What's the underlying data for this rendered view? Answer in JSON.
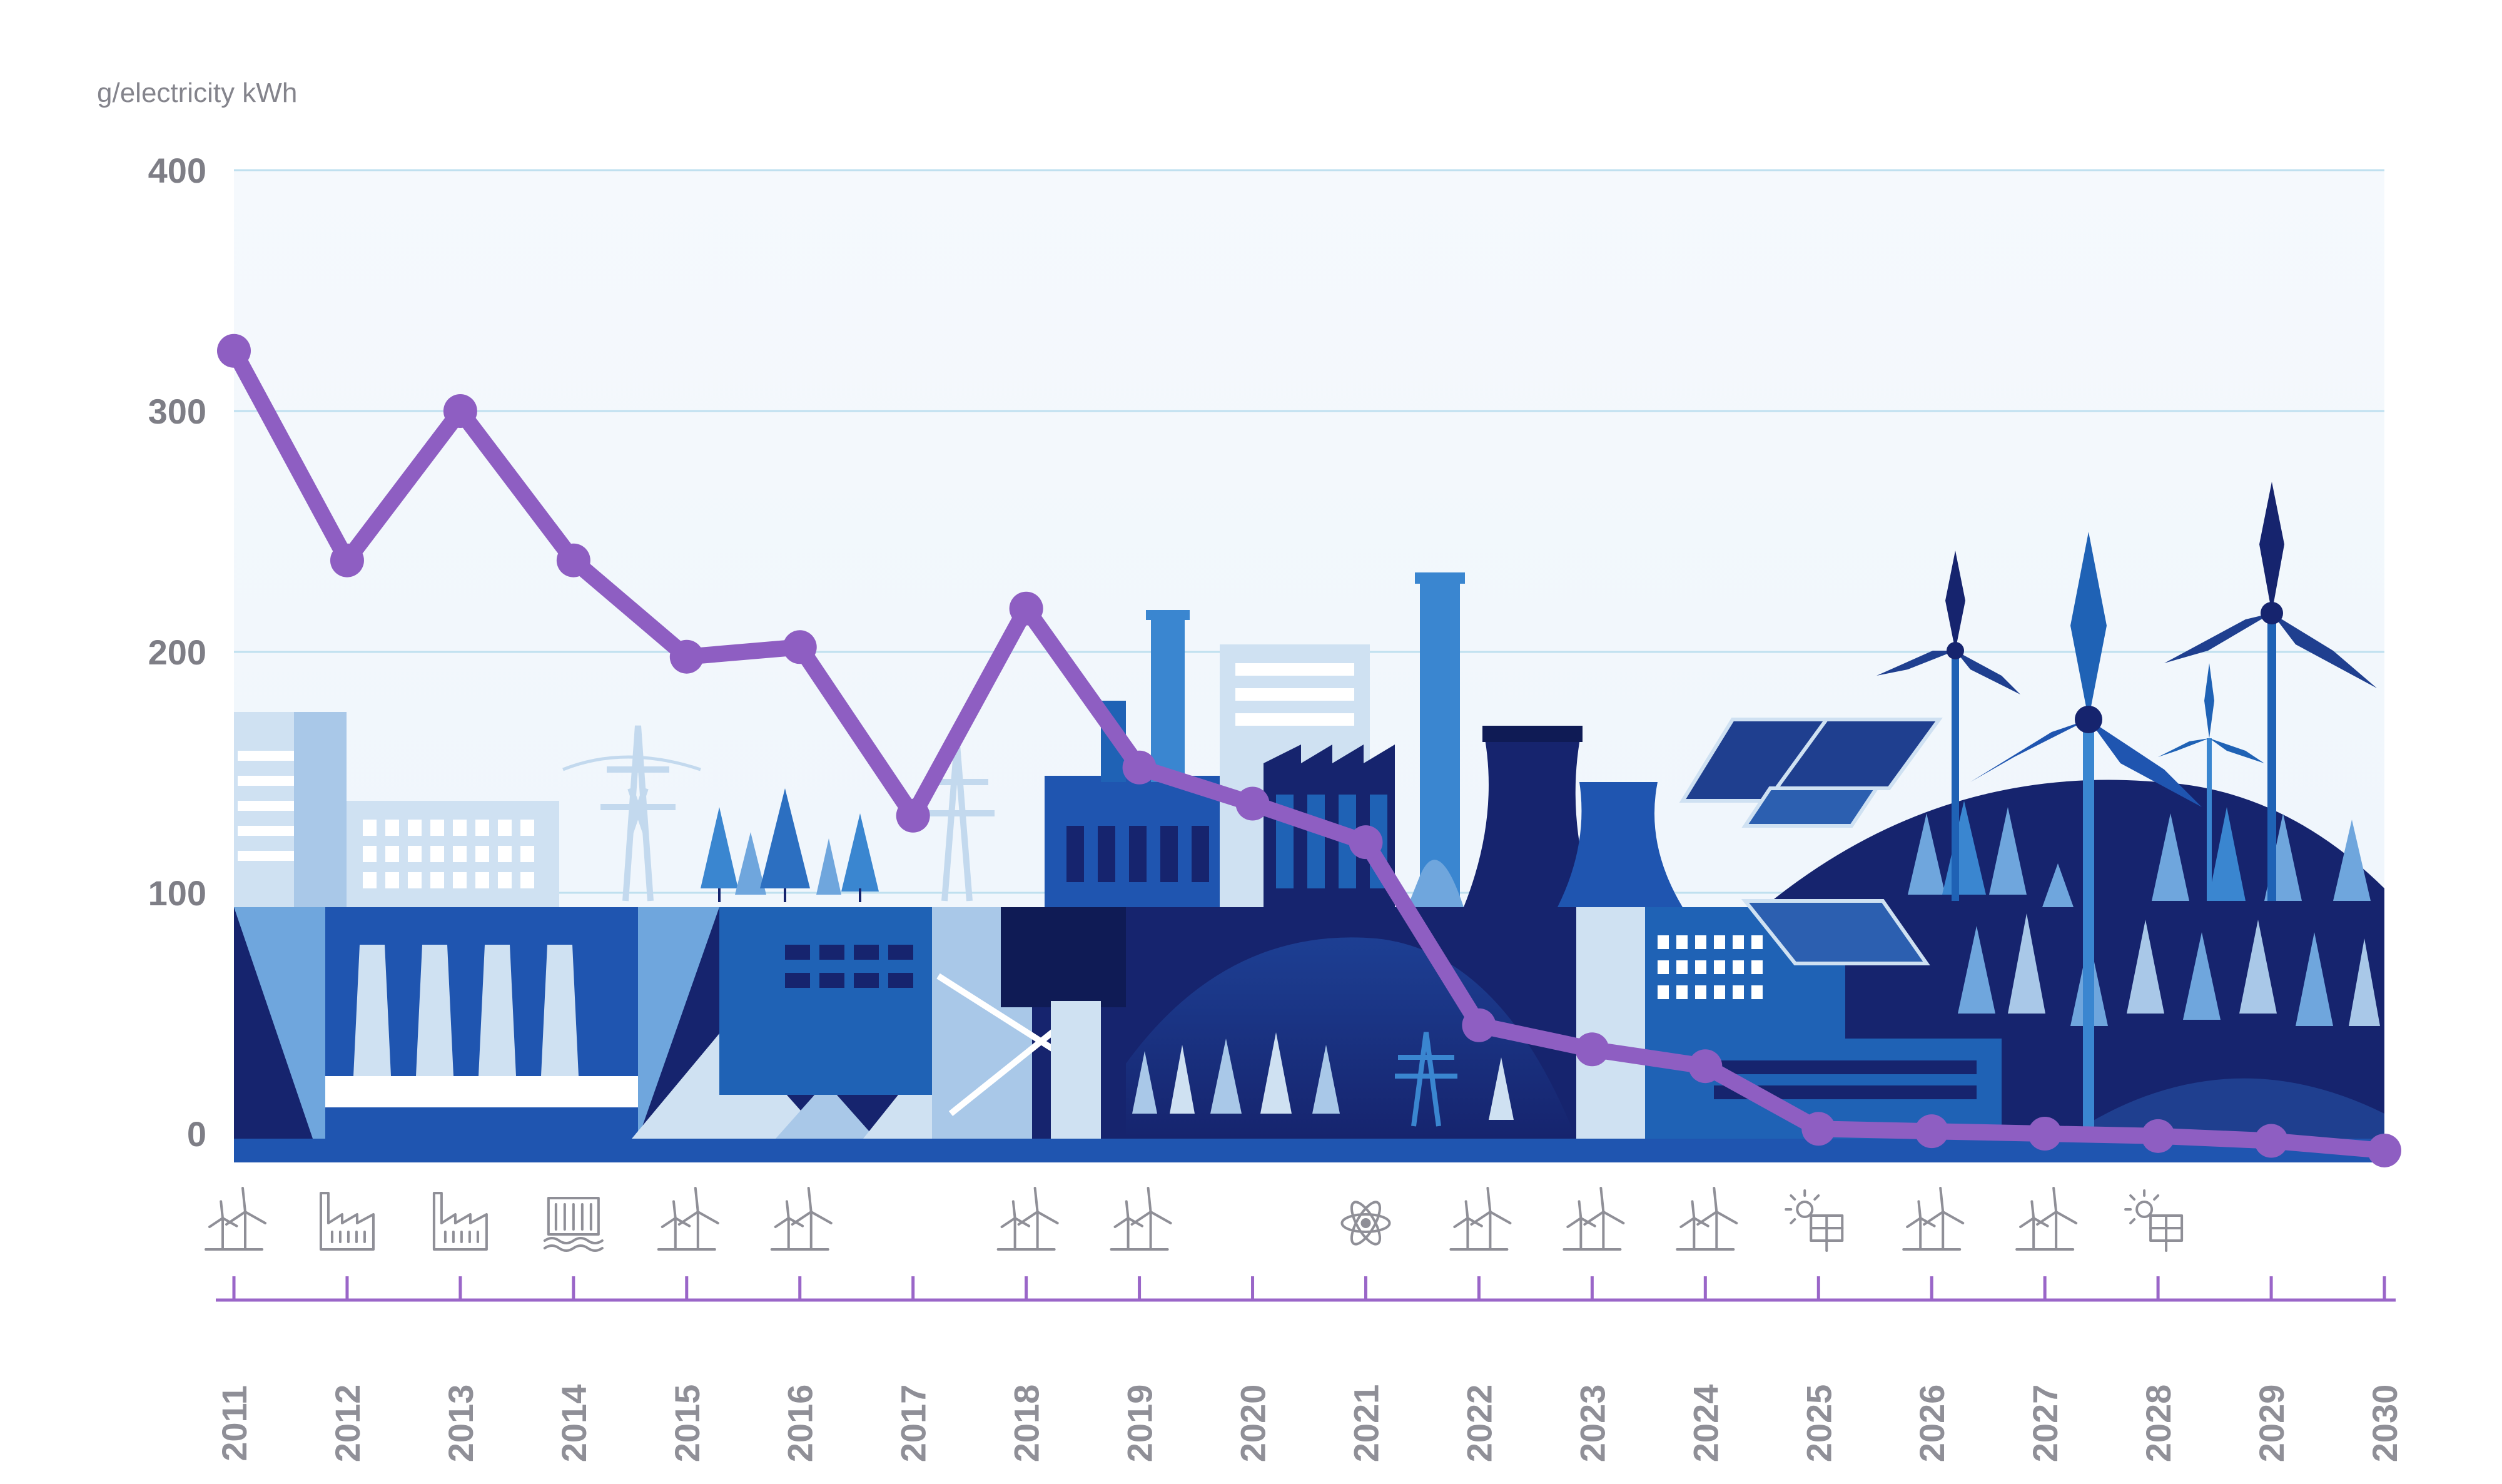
{
  "chart_data": {
    "type": "line",
    "title": "",
    "xlabel": "",
    "ylabel": "g/electricity kWh",
    "ylim": [
      0,
      400
    ],
    "yticks": [
      0,
      100,
      200,
      300,
      400
    ],
    "grid": true,
    "x": [
      "2011",
      "2012",
      "2013",
      "2014",
      "2015",
      "2016",
      "2017",
      "2018",
      "2019",
      "2020",
      "2021",
      "2022",
      "2023",
      "2024",
      "2025",
      "2026",
      "2027",
      "2028",
      "2029",
      "2030"
    ],
    "series": [
      {
        "values": [
          325,
          238,
          300,
          238,
          198,
          202,
          132,
          218,
          152,
          137,
          121,
          45,
          35,
          28,
          2,
          1,
          0,
          -1,
          -3,
          -7
        ]
      }
    ],
    "milestone_icons": [
      {
        "year": "2011",
        "icon": "wind-turbine-icon"
      },
      {
        "year": "2012",
        "icon": "factory-icon"
      },
      {
        "year": "2013",
        "icon": "factory-icon"
      },
      {
        "year": "2014",
        "icon": "hydro-plant-icon"
      },
      {
        "year": "2015",
        "icon": "wind-turbine-icon"
      },
      {
        "year": "2016",
        "icon": "wind-turbine-icon"
      },
      {
        "year": "2018",
        "icon": "wind-turbine-icon"
      },
      {
        "year": "2019",
        "icon": "wind-turbine-icon"
      },
      {
        "year": "2021",
        "icon": "atom-icon"
      },
      {
        "year": "2022",
        "icon": "wind-turbine-icon"
      },
      {
        "year": "2023",
        "icon": "wind-turbine-icon"
      },
      {
        "year": "2024",
        "icon": "wind-turbine-icon"
      },
      {
        "year": "2025",
        "icon": "solar-panel-icon"
      },
      {
        "year": "2026",
        "icon": "wind-turbine-icon"
      },
      {
        "year": "2027",
        "icon": "wind-turbine-icon"
      },
      {
        "year": "2028",
        "icon": "solar-panel-icon"
      }
    ],
    "colors": {
      "line": "#8e5ec2",
      "plot_background": "#f3f8fc",
      "grid": "#bfe0ef",
      "timeline": "#9a66c8",
      "dark_blue": "#16246e",
      "mid_blue": "#1f62b5",
      "light_blue": "#6fa6dd",
      "pale_blue": "#cfe1f2"
    }
  }
}
